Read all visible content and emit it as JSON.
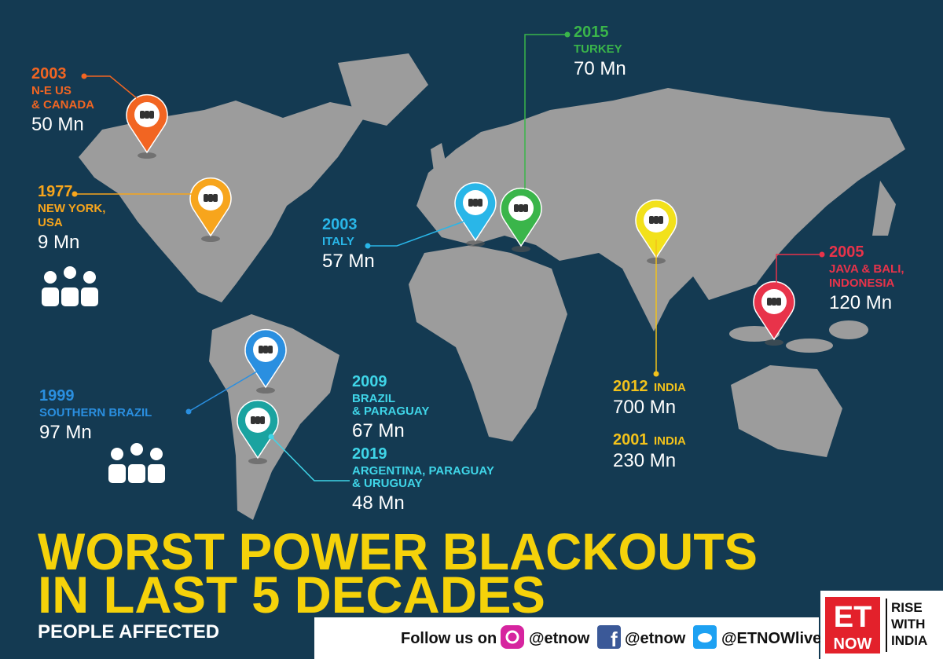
{
  "title": {
    "lines": [
      "WORST POWER BLACKOUTS",
      "IN LAST 5 DECADES"
    ],
    "subtitle": "PEOPLE AFFECTED"
  },
  "events": [
    {
      "year": "2003",
      "place": [
        "N-E US",
        "& CANADA"
      ],
      "affected": "50 Mn",
      "color": "#f26522"
    },
    {
      "year": "1977",
      "place": [
        "NEW YORK,",
        "USA"
      ],
      "affected": "9 Mn",
      "color": "#f7a51c"
    },
    {
      "year": "2003",
      "place": [
        "ITALY"
      ],
      "affected": "57 Mn",
      "color": "#29b6e8"
    },
    {
      "year": "2015",
      "place": [
        "TURKEY"
      ],
      "affected": "70 Mn",
      "color": "#3ab54a"
    },
    {
      "year": "2005",
      "place": [
        "JAVA & BALI,",
        "INDONESIA"
      ],
      "affected": "120 Mn",
      "color": "#e8334a"
    },
    {
      "year": "2012",
      "place": [
        "INDIA"
      ],
      "affected": "700 Mn",
      "color": "#f2c21b"
    },
    {
      "year": "2001",
      "place": [
        "INDIA"
      ],
      "affected": "230 Mn",
      "color": "#f2c21b"
    },
    {
      "year": "1999",
      "place": [
        "SOUTHERN BRAZIL"
      ],
      "affected": "97 Mn",
      "color": "#2a8fe0"
    },
    {
      "year": "2009",
      "place": [
        "BRAZIL",
        "& PARAGUAY"
      ],
      "affected": "67 Mn",
      "color": "#3fd5e8"
    },
    {
      "year": "2019",
      "place": [
        "ARGENTINA, PARAGUAY",
        "& URUGUAY"
      ],
      "affected": "48 Mn",
      "color": "#3fd5e8"
    }
  ],
  "footer": {
    "follow": "Follow us on",
    "instagram": "@etnow",
    "facebook": "@etnow",
    "twitter": "@ETNOWlive"
  },
  "logo": {
    "brand": [
      "ET",
      "NOW"
    ],
    "tagline": [
      "RISE",
      "WITH",
      "INDIA"
    ]
  }
}
